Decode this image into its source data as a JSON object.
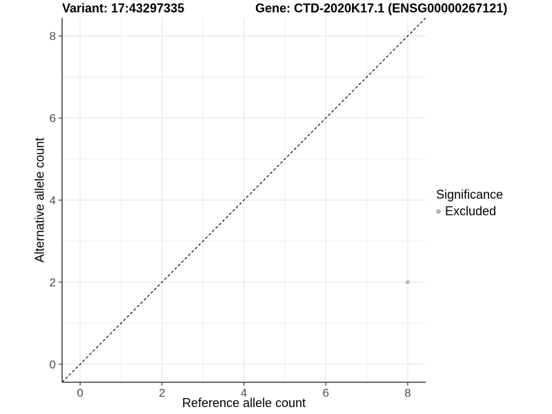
{
  "chart_data": {
    "type": "scatter",
    "titles": {
      "variant": "Variant: 17:43297335",
      "gene": "Gene: CTD-2020K17.1 (ENSG00000267121)"
    },
    "xlabel": "Reference allele count",
    "ylabel": "Alternative allele count",
    "xlim": [
      -0.44,
      8.44
    ],
    "ylim": [
      -0.44,
      8.44
    ],
    "x_ticks": [
      0,
      2,
      4,
      6,
      8
    ],
    "y_ticks": [
      0,
      2,
      4,
      6,
      8
    ],
    "grid_lines_at": [
      0,
      1,
      2,
      3,
      4,
      5,
      6,
      7,
      8
    ],
    "grid": true,
    "identity_line": {
      "show": true,
      "style": "dashed",
      "color": "#000000"
    },
    "series": [
      {
        "name": "Excluded",
        "color": "#b3b3b3",
        "points": [
          {
            "x": 8,
            "y": 2
          }
        ]
      }
    ],
    "legend": {
      "position": "right",
      "title": "Significance",
      "items": [
        {
          "label": "Excluded",
          "color": "#b3b3b3"
        }
      ]
    },
    "colors": {
      "grid_major": "#e3e3e3",
      "grid_minor": "#ececec",
      "axis_line": "#3a3a3a",
      "tick_mark": "#3a3a3a",
      "tick_label": "#4d4d4d",
      "point": "#b3b3b3",
      "background": "#ffffff"
    }
  }
}
